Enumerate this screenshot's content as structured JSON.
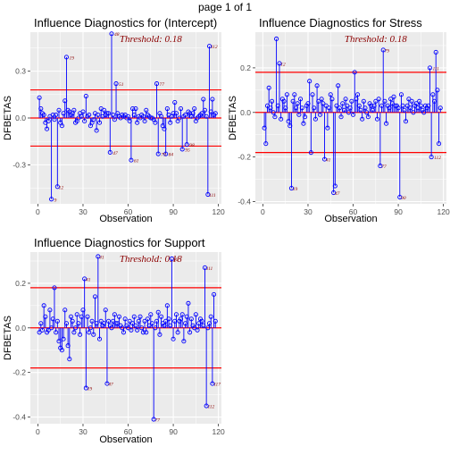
{
  "page_label": "page 1 of 1",
  "chart_data": [
    {
      "type": "scatter",
      "title": "Influence Diagnostics for (Intercept)",
      "xlabel": "Observation",
      "ylabel": "DFBETAS",
      "threshold_text": "Threshold: 0.18",
      "threshold": 0.18,
      "xlim": [
        -5,
        122
      ],
      "ylim": [
        -0.55,
        0.55
      ],
      "xticks": [
        0,
        30,
        60,
        90,
        120
      ],
      "yticks": [
        -0.3,
        0.0,
        0.3
      ],
      "ytick_labels": [
        "-0.3",
        "0.0",
        "0.3"
      ],
      "values": [
        0.13,
        0.06,
        0.03,
        0.02,
        -0.03,
        -0.07,
        -0.02,
        0.01,
        -0.52,
        0.02,
        -0.01,
        0.02,
        -0.44,
        0.05,
        -0.03,
        -0.05,
        0.03,
        0.11,
        0.39,
        0.05,
        0.04,
        0.02,
        0.03,
        0.05,
        -0.03,
        -0.02,
        0.0,
        0.03,
        0.01,
        0.04,
        -0.02,
        0.14,
        0.01,
        0.02,
        -0.05,
        -0.03,
        -0.01,
        0.03,
        -0.08,
        0.02,
        -0.03,
        0.06,
        0.01,
        0.05,
        0.02,
        0.03,
        0.03,
        -0.22,
        0.54,
        0.02,
        -0.01,
        0.22,
        0.03,
        0.01,
        0.0,
        0.02,
        0.01,
        0.02,
        0.0,
        0.01,
        -0.02,
        -0.27,
        0.06,
        0.02,
        0.06,
        -0.03,
        0.01,
        0.0,
        0.02,
        0.01,
        -0.02,
        0.05,
        0.02,
        0.01,
        0.0,
        0.0,
        -0.01,
        -0.03,
        0.22,
        -0.23,
        0.03,
        0.01,
        -0.05,
        -0.07,
        -0.23,
        0.06,
        0.02,
        -0.03,
        0.01,
        0.03,
        0.1,
        0.03,
        -0.02,
        0.0,
        0.06,
        -0.2,
        0.01,
        0.02,
        -0.17,
        0.04,
        0.03,
        0.01,
        0.03,
        0.06,
        -0.02,
        0.0,
        0.01,
        0.02,
        0.03,
        0.12,
        0.05,
        0.01,
        -0.49,
        0.46,
        0.04,
        0.12,
        0.02,
        0.03
      ],
      "labeled_points": [
        {
          "label": "9",
          "x": 9,
          "y": -0.52
        },
        {
          "label": "12",
          "x": 12,
          "y": -0.44
        },
        {
          "label": "19",
          "x": 19,
          "y": 0.39
        },
        {
          "label": "47",
          "x": 48,
          "y": -0.22
        },
        {
          "label": "48",
          "x": 49,
          "y": 0.54
        },
        {
          "label": "51",
          "x": 52,
          "y": 0.22
        },
        {
          "label": "61",
          "x": 62,
          "y": -0.27
        },
        {
          "label": "77",
          "x": 79,
          "y": 0.22
        },
        {
          "label": "79",
          "x": 80,
          "y": -0.23
        },
        {
          "label": "84",
          "x": 85,
          "y": -0.23
        },
        {
          "label": "95",
          "x": 96,
          "y": -0.2
        },
        {
          "label": "98",
          "x": 99,
          "y": -0.17
        },
        {
          "label": "111",
          "x": 112,
          "y": -0.49
        },
        {
          "label": "112",
          "x": 113,
          "y": 0.46
        }
      ]
    },
    {
      "type": "scatter",
      "title": "Influence Diagnostics for Stress",
      "xlabel": "Observation",
      "ylabel": "DFBETAS",
      "threshold_text": "Threshold: 0.18",
      "threshold": 0.18,
      "xlim": [
        -5,
        122
      ],
      "ylim": [
        -0.41,
        0.36
      ],
      "xticks": [
        0,
        30,
        60,
        90,
        120
      ],
      "yticks": [
        -0.4,
        -0.2,
        0.0,
        0.2
      ],
      "ytick_labels": [
        "-0.4",
        "-0.2",
        "0.0",
        "0.2"
      ],
      "values": [
        -0.07,
        -0.14,
        0.03,
        0.11,
        0.02,
        0.05,
        0.0,
        -0.02,
        0.33,
        0.03,
        0.22,
        -0.03,
        0.06,
        0.05,
        0.02,
        0.08,
        -0.04,
        -0.06,
        -0.34,
        0.05,
        0.08,
        0.02,
        0.04,
        -0.01,
        0.06,
        0.02,
        -0.05,
        -0.02,
        0.03,
        0.04,
        0.14,
        -0.18,
        0.08,
        0.02,
        -0.03,
        0.12,
        0.05,
        -0.01,
        0.06,
        0.04,
        -0.21,
        0.03,
        -0.07,
        0.02,
        0.08,
        0.06,
        -0.36,
        -0.33,
        0.03,
        0.12,
        0.02,
        -0.02,
        0.04,
        0.01,
        0.06,
        0.03,
        0.0,
        0.02,
        0.05,
        -0.01,
        0.18,
        0.06,
        0.08,
        0.03,
        0.01,
        -0.03,
        0.05,
        0.02,
        0.0,
        -0.02,
        0.04,
        0.03,
        0.01,
        0.03,
        0.05,
        -0.03,
        0.06,
        -0.24,
        0.03,
        0.28,
        0.05,
        -0.05,
        0.03,
        0.02,
        0.06,
        0.04,
        0.07,
        0.03,
        0.03,
        0.02,
        -0.38,
        0.08,
        0.03,
        0.01,
        -0.04,
        0.03,
        0.06,
        0.02,
        0.05,
        0.0,
        0.03,
        0.04,
        0.02,
        0.05,
        0.03,
        0.01,
        0.0,
        0.03,
        0.02,
        0.03,
        0.2,
        -0.2,
        0.08,
        0.05,
        0.27,
        0.1,
        -0.14,
        0.02
      ],
      "labeled_points": [
        {
          "label": "12",
          "x": 10,
          "y": 0.22
        },
        {
          "label": "19",
          "x": 18,
          "y": -0.34
        },
        {
          "label": "41",
          "x": 40,
          "y": -0.21
        },
        {
          "label": "47",
          "x": 46,
          "y": -0.36
        },
        {
          "label": "77",
          "x": 77,
          "y": -0.24
        },
        {
          "label": "79",
          "x": 79,
          "y": 0.28
        },
        {
          "label": "90",
          "x": 90,
          "y": -0.38
        },
        {
          "label": "111",
          "x": 111,
          "y": 0.2
        },
        {
          "label": "112",
          "x": 112,
          "y": -0.2
        }
      ]
    },
    {
      "type": "scatter",
      "title": "Influence Diagnostics for Support",
      "xlabel": "Observation",
      "ylabel": "DFBETAS",
      "threshold_text": "Threshold: 0.18",
      "threshold": 0.18,
      "xlim": [
        -5,
        122
      ],
      "ylim": [
        -0.43,
        0.34
      ],
      "xticks": [
        0,
        30,
        60,
        90,
        120
      ],
      "yticks": [
        -0.4,
        -0.2,
        0.0,
        0.2
      ],
      "ytick_labels": [
        "-0.4",
        "-0.2",
        "0.0",
        "0.2"
      ],
      "values": [
        -0.02,
        0.02,
        -0.01,
        0.1,
        0.05,
        -0.02,
        -0.01,
        0.08,
        0.0,
        0.04,
        0.18,
        -0.02,
        0.03,
        -0.06,
        -0.09,
        -0.1,
        -0.05,
        0.08,
        0.02,
        -0.08,
        -0.14,
        0.05,
        0.03,
        -0.02,
        0.0,
        0.06,
        0.02,
        -0.03,
        0.05,
        0.08,
        0.22,
        -0.27,
        0.05,
        -0.02,
        0.0,
        0.03,
        -0.03,
        0.14,
        0.02,
        0.32,
        -0.05,
        0.03,
        0.01,
        0.02,
        0.08,
        -0.25,
        0.03,
        0.01,
        0.0,
        0.03,
        0.06,
        0.02,
        0.02,
        0.05,
        0.01,
        0.0,
        -0.02,
        0.04,
        0.01,
        0.0,
        0.03,
        -0.01,
        0.02,
        0.05,
        0.01,
        -0.01,
        0.03,
        0.05,
        0.0,
        -0.02,
        0.03,
        -0.02,
        0.04,
        0.01,
        0.06,
        0.02,
        -0.41,
        0.0,
        0.03,
        0.07,
        -0.03,
        0.05,
        0.02,
        0.01,
        0.03,
        0.1,
        0.04,
        0.01,
        0.31,
        -0.05,
        0.03,
        0.06,
        -0.02,
        0.03,
        0.04,
        0.06,
        -0.06,
        0.02,
        0.05,
        0.11,
        -0.02,
        0.04,
        0.01,
        0.0,
        0.06,
        -0.01,
        0.02,
        0.04,
        0.03,
        0.01,
        0.27,
        -0.35,
        0.0,
        0.02,
        0.05,
        -0.25,
        0.15,
        0.03
      ],
      "labeled_points": [
        {
          "label": "41",
          "x": 30,
          "y": 0.22
        },
        {
          "label": "41",
          "x": 39,
          "y": 0.32
        },
        {
          "label": "19",
          "x": 31,
          "y": -0.27
        },
        {
          "label": "47",
          "x": 45,
          "y": -0.25
        },
        {
          "label": "77",
          "x": 76,
          "y": -0.41
        },
        {
          "label": "90",
          "x": 88,
          "y": 0.31
        },
        {
          "label": "111",
          "x": 110,
          "y": 0.27
        },
        {
          "label": "112",
          "x": 111,
          "y": -0.35
        },
        {
          "label": "117",
          "x": 115,
          "y": -0.25
        }
      ]
    }
  ],
  "colors": {
    "panel_bg": "#ebebeb",
    "grid": "#ffffff",
    "threshold_line": "#ff0000",
    "zero_line": "#ff0000",
    "stems": "#0000ff",
    "points": "#0000ff",
    "threshold_text": "#8b0000",
    "point_label": "#8b0000",
    "axis_text": "#4d4d4d"
  }
}
